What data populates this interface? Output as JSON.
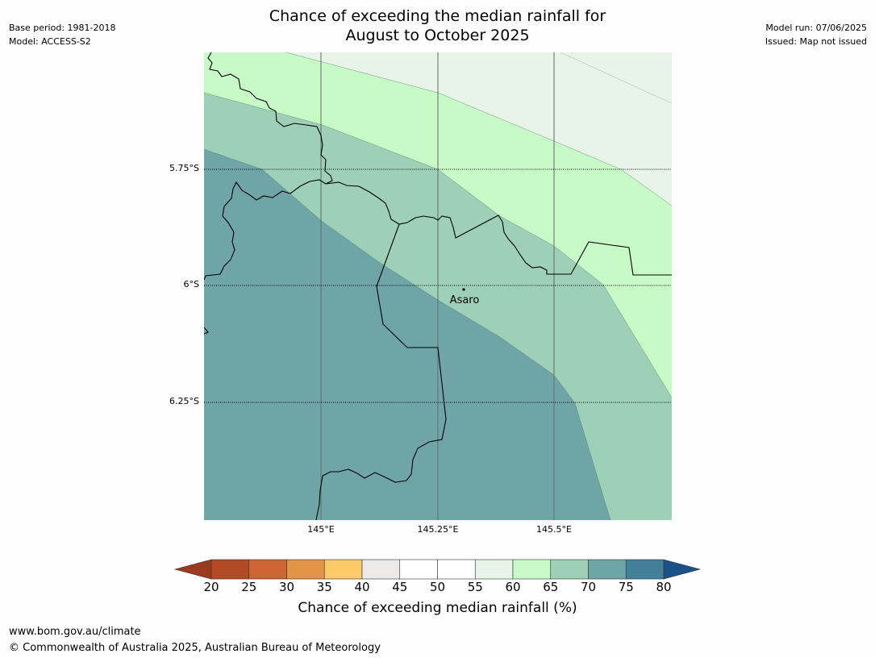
{
  "title": {
    "line1": "Chance of exceeding the median rainfall for",
    "line2": "August to October 2025"
  },
  "meta": {
    "base_period": "Base period: 1981-2018",
    "model": "Model: ACCESS-S2",
    "model_run": "Model run: 07/06/2025",
    "issued": "Issued: Map not issued"
  },
  "map": {
    "lat_labels": [
      "5.75°S",
      "6°S",
      "6.25°S"
    ],
    "lon_labels": [
      "145°E",
      "145.25°E",
      "145.5°E"
    ],
    "place": "Asaro",
    "band_colors": {
      "p55_60": "#e8f4e8",
      "p60_65": "#c8fac8",
      "p65_70": "#9ed0b8",
      "p70_75": "#70a5a8"
    }
  },
  "colorbar": {
    "ticks": [
      "20",
      "25",
      "30",
      "35",
      "40",
      "45",
      "50",
      "55",
      "60",
      "65",
      "70",
      "75",
      "80"
    ],
    "colors": [
      "#9b3a20",
      "#b44a25",
      "#ce6532",
      "#e29447",
      "#fdca68",
      "#ece9e6",
      "#ffffff",
      "#ffffff",
      "#e8f4e8",
      "#c8fac8",
      "#9ed0b8",
      "#70a5a8",
      "#427f99",
      "#1b5189"
    ],
    "label": "Chance of exceeding median rainfall (%)"
  },
  "footer": {
    "url": "www.bom.gov.au/climate",
    "copyright": "© Commonwealth of Australia 2025, Australian Bureau of Meteorology"
  }
}
